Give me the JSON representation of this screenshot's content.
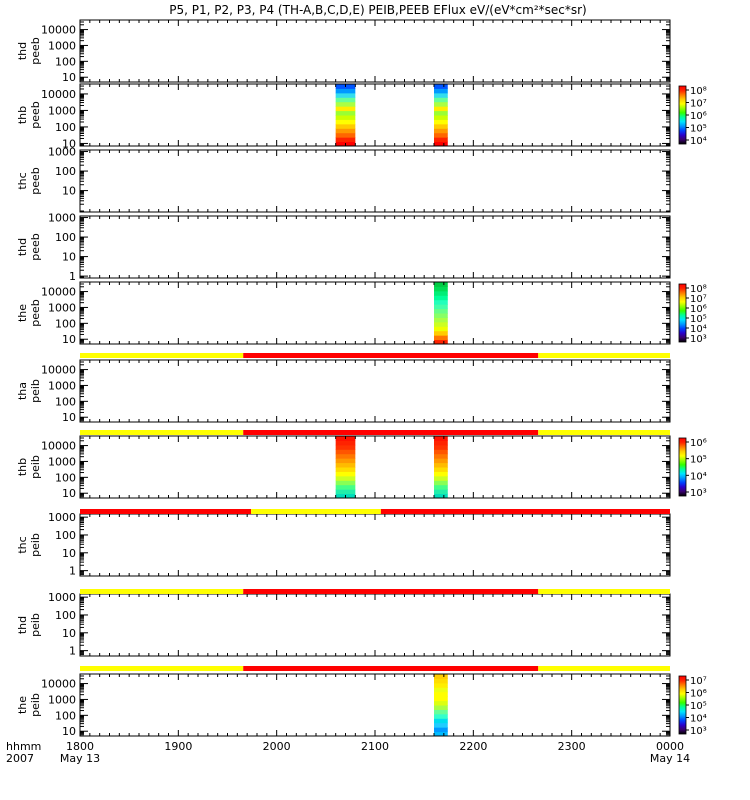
{
  "chart_data": {
    "type": "heatmap",
    "title": "P5, P1, P2, P3, P4 (TH-A,B,C,D,E) PEIB,PEEB EFlux eV/(eV*cm²*sec*sr)",
    "x_axis": {
      "range_minutes": [
        1800,
        2400
      ],
      "tick_labels": [
        "1800",
        "1900",
        "2000",
        "2100",
        "2200",
        "2300",
        "0000"
      ],
      "row_labels": [
        "hhmm",
        "2007"
      ],
      "date_labels": [
        {
          "at": "1800",
          "label": "May 13"
        },
        {
          "at": "0000",
          "label": "May 14"
        }
      ]
    },
    "panels": [
      {
        "label": [
          "thd",
          "peeb"
        ],
        "yticks": [
          "10000",
          "1000",
          "100",
          "10"
        ],
        "ylim": [
          5,
          40000
        ],
        "bands": [],
        "colorbar": null
      },
      {
        "label": [
          "thb",
          "peeb"
        ],
        "yticks": [
          "10000",
          "1000",
          "100",
          "10"
        ],
        "ylim": [
          7,
          40000
        ],
        "bands": [
          {
            "start": 2060,
            "end": 2080,
            "profile": "peeb_b"
          },
          {
            "start": 2160,
            "end": 2174,
            "profile": "peeb_b"
          }
        ],
        "colorbar": {
          "labels": [
            "10⁸",
            "10⁷",
            "10⁶",
            "10⁵",
            "10⁴"
          ]
        }
      },
      {
        "label": [
          "thc",
          "peeb"
        ],
        "yticks": [
          "1000",
          "100",
          "10"
        ],
        "ylim": [
          0.8,
          1200
        ],
        "bands": [],
        "colorbar": null
      },
      {
        "label": [
          "thd",
          "peeb"
        ],
        "yticks": [
          "1000",
          "100",
          "10",
          "1"
        ],
        "ylim": [
          0.8,
          1200
        ],
        "bands": [],
        "colorbar": null
      },
      {
        "label": [
          "the",
          "peeb"
        ],
        "yticks": [
          "10000",
          "1000",
          "100",
          "10"
        ],
        "ylim": [
          5,
          40000
        ],
        "bands": [
          {
            "start": 2160,
            "end": 2174,
            "profile": "peeb_e"
          }
        ],
        "colorbar": {
          "labels": [
            "10⁸",
            "10⁷",
            "10⁶",
            "10⁵",
            "10⁴",
            "10³"
          ]
        }
      },
      {
        "label": [
          "tha",
          "peib"
        ],
        "yticks": [
          "10000",
          "1000",
          "100",
          "10"
        ],
        "ylim": [
          5,
          40000
        ],
        "bands": [],
        "colorbar": null
      },
      {
        "label": [
          "thb",
          "peib"
        ],
        "yticks": [
          "10000",
          "1000",
          "100",
          "10"
        ],
        "ylim": [
          5,
          40000
        ],
        "bands": [
          {
            "start": 2060,
            "end": 2080,
            "profile": "peib_b"
          },
          {
            "start": 2160,
            "end": 2174,
            "profile": "peib_b"
          }
        ],
        "colorbar": {
          "labels": [
            "10⁶",
            "10⁵",
            "10⁴",
            "10³"
          ]
        }
      },
      {
        "label": [
          "thc",
          "peib"
        ],
        "yticks": [
          "1000",
          "100",
          "10",
          "1"
        ],
        "ylim": [
          0.5,
          1500
        ],
        "bands": [],
        "colorbar": null
      },
      {
        "label": [
          "thd",
          "peib"
        ],
        "yticks": [
          "1000",
          "100",
          "10",
          "1"
        ],
        "ylim": [
          0.5,
          1500
        ],
        "bands": [],
        "colorbar": null
      },
      {
        "label": [
          "the",
          "peib"
        ],
        "yticks": [
          "10000",
          "1000",
          "100",
          "10"
        ],
        "ylim": [
          5,
          40000
        ],
        "bands": [
          {
            "start": 2160,
            "end": 2174,
            "profile": "peib_e"
          }
        ],
        "colorbar": {
          "labels": [
            "10⁷",
            "10⁶",
            "10⁵",
            "10⁴",
            "10³"
          ]
        }
      }
    ],
    "mode_bars": [
      {
        "above_panel": 5,
        "segments": [
          {
            "start": 1800,
            "end": 1966,
            "color": "#ffff00"
          },
          {
            "start": 1966,
            "end": 2266,
            "color": "#ff0000"
          },
          {
            "start": 2266,
            "end": 2400,
            "color": "#ffff00"
          }
        ]
      },
      {
        "above_panel": 6,
        "segments": [
          {
            "start": 1800,
            "end": 1966,
            "color": "#ffff00"
          },
          {
            "start": 1966,
            "end": 2266,
            "color": "#ff0000"
          },
          {
            "start": 2266,
            "end": 2400,
            "color": "#ffff00"
          }
        ]
      },
      {
        "above_panel": 7,
        "segments": [
          {
            "start": 1800,
            "end": 1974,
            "color": "#ff0000"
          },
          {
            "start": 1974,
            "end": 2106,
            "color": "#ffff00"
          },
          {
            "start": 2106,
            "end": 2400,
            "color": "#ff0000"
          }
        ]
      },
      {
        "above_panel": 8,
        "segments": [
          {
            "start": 1800,
            "end": 1966,
            "color": "#ffff00"
          },
          {
            "start": 1966,
            "end": 2266,
            "color": "#ff0000"
          },
          {
            "start": 2266,
            "end": 2400,
            "color": "#ffff00"
          }
        ]
      },
      {
        "above_panel": 9,
        "segments": [
          {
            "start": 1800,
            "end": 1966,
            "color": "#ffff00"
          },
          {
            "start": 1966,
            "end": 2266,
            "color": "#ff0000"
          },
          {
            "start": 2266,
            "end": 2400,
            "color": "#ffff00"
          }
        ]
      }
    ],
    "profiles": {
      "peeb_b": [
        "#ff0000",
        "#ff2200",
        "#ff6600",
        "#ff9900",
        "#ffcc00",
        "#ffff00",
        "#ccff00",
        "#99ff33",
        "#ffee00",
        "#aaff44",
        "#66ff99",
        "#33ddee",
        "#0099ff",
        "#0055ff"
      ],
      "peeb_e": [
        "#ff2200",
        "#ff7700",
        "#ffcc00",
        "#eeff00",
        "#ccff22",
        "#aaff44",
        "#88ff66",
        "#66ff88",
        "#44ffaa",
        "#22ffbb",
        "#00ff99",
        "#00ee77",
        "#00dd55",
        "#00cc44"
      ],
      "peib_b": [
        "#00ddbb",
        "#22eeaa",
        "#44ff88",
        "#88ff55",
        "#ccff22",
        "#ffff00",
        "#ffdd00",
        "#ffbb00",
        "#ff9900",
        "#ff7700",
        "#ff5500",
        "#ff3300",
        "#ff2200",
        "#ff1100"
      ],
      "peib_e": [
        "#00bbff",
        "#0099ff",
        "#22ccff",
        "#00ddee",
        "#33ffcc",
        "#66ff99",
        "#aaff44",
        "#ddff11",
        "#ffff00",
        "#ffff00",
        "#eeff11",
        "#ffee00",
        "#ffdd00",
        "#ffcc00"
      ]
    },
    "colorbar_gradient": [
      "#000000",
      "#3a006f",
      "#2a00cc",
      "#0040ff",
      "#0099ff",
      "#00e5ff",
      "#00ff99",
      "#33ff00",
      "#99ff00",
      "#ffff00",
      "#ffcc00",
      "#ff7a00",
      "#ff2200",
      "#ff0000"
    ]
  }
}
